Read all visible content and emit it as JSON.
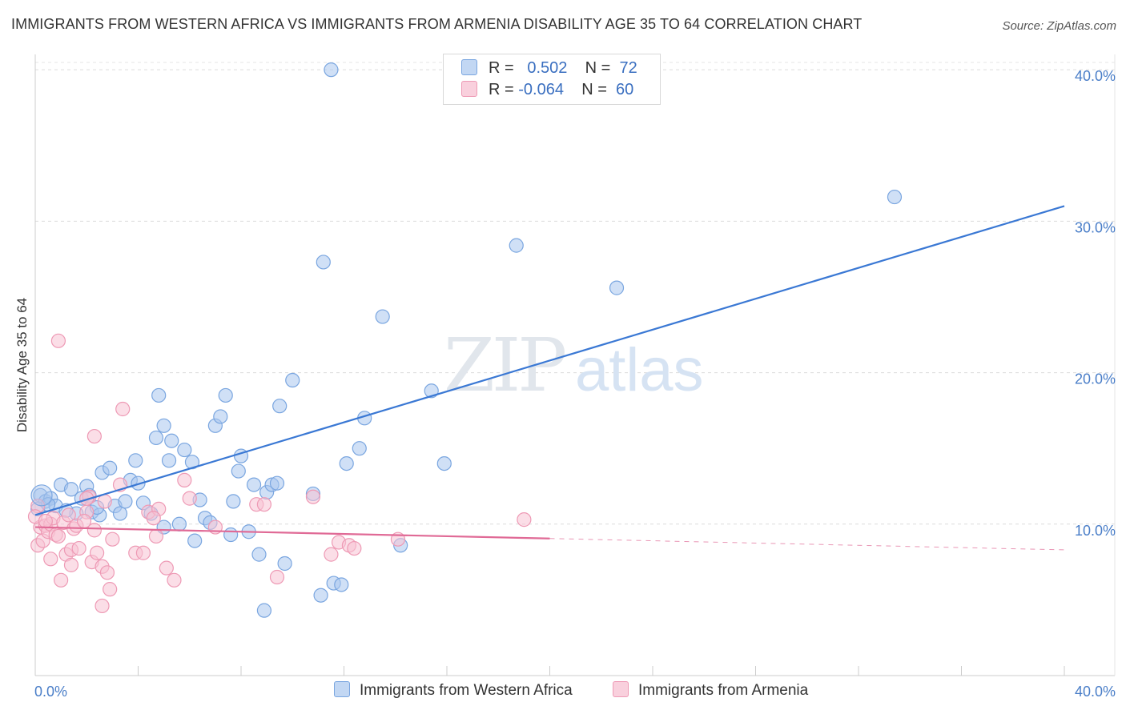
{
  "title": "IMMIGRANTS FROM WESTERN AFRICA VS IMMIGRANTS FROM ARMENIA DISABILITY AGE 35 TO 64 CORRELATION CHART",
  "source": "Source: ZipAtlas.com",
  "watermark": {
    "zip": "ZIP",
    "atlas": "atlas"
  },
  "legend_top": {
    "rows": [
      {
        "r_label": "R =",
        "r_value": "0.502",
        "n_label": "N =",
        "n_value": "72"
      },
      {
        "r_label": "R =",
        "r_value": "-0.064",
        "n_label": "N =",
        "n_value": "60"
      }
    ]
  },
  "chart_data": {
    "type": "scatter",
    "title": "IMMIGRANTS FROM WESTERN AFRICA VS IMMIGRANTS FROM ARMENIA DISABILITY AGE 35 TO 64 CORRELATION CHART",
    "xlabel": "",
    "ylabel": "Disability Age 35 to 64",
    "xlim": [
      0,
      40
    ],
    "ylim": [
      0,
      40.8
    ],
    "x_tick_labels": [
      "0.0%",
      "40.0%"
    ],
    "y_ticks": [
      10,
      20,
      30,
      40
    ],
    "y_tick_labels": [
      "10.0%",
      "20.0%",
      "30.0%",
      "40.0%"
    ],
    "grid": true,
    "legend_position": "bottom",
    "series": [
      {
        "name": "Immigrants from Western Africa",
        "color": "#7aa6e0",
        "fill": "#a9c6ee",
        "line_color": "#3a78d4",
        "r": 0.502,
        "n": 72,
        "trend": {
          "x0": 0,
          "y0": 10.6,
          "x1": 40,
          "y1": 31.0,
          "dashed_from": null
        },
        "points": [
          [
            0.2,
            11.9
          ],
          [
            0.4,
            11.5
          ],
          [
            0.6,
            11.7
          ],
          [
            0.8,
            11.2
          ],
          [
            1.0,
            12.6
          ],
          [
            1.4,
            12.3
          ],
          [
            1.6,
            10.7
          ],
          [
            1.8,
            11.7
          ],
          [
            2.0,
            12.5
          ],
          [
            2.1,
            11.9
          ],
          [
            2.2,
            10.8
          ],
          [
            2.5,
            10.6
          ],
          [
            2.6,
            13.4
          ],
          [
            2.9,
            13.7
          ],
          [
            3.1,
            11.2
          ],
          [
            3.3,
            10.7
          ],
          [
            3.5,
            11.5
          ],
          [
            3.7,
            12.9
          ],
          [
            3.9,
            14.2
          ],
          [
            4.0,
            12.7
          ],
          [
            4.2,
            11.4
          ],
          [
            4.5,
            10.7
          ],
          [
            4.7,
            15.7
          ],
          [
            4.8,
            18.5
          ],
          [
            5.0,
            16.5
          ],
          [
            5.2,
            14.2
          ],
          [
            5.3,
            15.5
          ],
          [
            5.6,
            10.0
          ],
          [
            5.8,
            14.9
          ],
          [
            6.1,
            14.1
          ],
          [
            6.2,
            8.9
          ],
          [
            6.4,
            11.6
          ],
          [
            6.6,
            10.4
          ],
          [
            6.8,
            10.1
          ],
          [
            7.0,
            16.5
          ],
          [
            7.2,
            17.1
          ],
          [
            7.4,
            18.5
          ],
          [
            7.6,
            9.3
          ],
          [
            7.7,
            11.5
          ],
          [
            7.9,
            13.5
          ],
          [
            8.0,
            14.5
          ],
          [
            8.3,
            9.5
          ],
          [
            8.5,
            12.6
          ],
          [
            8.7,
            8.0
          ],
          [
            9.0,
            12.1
          ],
          [
            9.2,
            12.6
          ],
          [
            9.4,
            12.7
          ],
          [
            9.5,
            17.8
          ],
          [
            9.7,
            7.4
          ],
          [
            10.0,
            19.5
          ],
          [
            10.8,
            12.0
          ],
          [
            11.1,
            5.3
          ],
          [
            11.2,
            27.3
          ],
          [
            11.5,
            40.0
          ],
          [
            11.6,
            6.1
          ],
          [
            11.9,
            6.0
          ],
          [
            12.1,
            14.0
          ],
          [
            12.6,
            15.0
          ],
          [
            12.8,
            17.0
          ],
          [
            13.5,
            23.7
          ],
          [
            14.2,
            8.6
          ],
          [
            15.4,
            18.8
          ],
          [
            15.9,
            14.0
          ],
          [
            18.7,
            28.4
          ],
          [
            22.6,
            25.6
          ],
          [
            33.4,
            31.6
          ],
          [
            0.1,
            11.0
          ],
          [
            0.5,
            11.3
          ],
          [
            1.2,
            10.9
          ],
          [
            2.4,
            11.1
          ],
          [
            5.0,
            9.8
          ],
          [
            8.9,
            4.3
          ]
        ]
      },
      {
        "name": "Immigrants from Armenia",
        "color": "#ee9ab5",
        "fill": "#f7c3d4",
        "line_color": "#e06a96",
        "r": -0.064,
        "n": 60,
        "trend": {
          "x0": 0,
          "y0": 9.8,
          "x1": 40,
          "y1": 8.3,
          "dashed_from": 20.0
        },
        "points": [
          [
            0.1,
            11.2
          ],
          [
            0.1,
            8.6
          ],
          [
            0.2,
            9.8
          ],
          [
            0.3,
            8.9
          ],
          [
            0.4,
            9.9
          ],
          [
            0.5,
            9.5
          ],
          [
            0.6,
            10.0
          ],
          [
            0.6,
            7.7
          ],
          [
            0.7,
            10.4
          ],
          [
            0.8,
            9.3
          ],
          [
            0.9,
            22.1
          ],
          [
            1.0,
            6.3
          ],
          [
            1.1,
            10.1
          ],
          [
            1.2,
            8.0
          ],
          [
            1.3,
            10.6
          ],
          [
            1.4,
            8.3
          ],
          [
            1.4,
            7.3
          ],
          [
            1.5,
            9.7
          ],
          [
            1.6,
            9.9
          ],
          [
            1.7,
            8.4
          ],
          [
            2.0,
            10.8
          ],
          [
            2.1,
            11.8
          ],
          [
            2.2,
            7.5
          ],
          [
            2.3,
            9.6
          ],
          [
            2.3,
            15.8
          ],
          [
            2.4,
            8.1
          ],
          [
            2.6,
            7.2
          ],
          [
            2.6,
            4.6
          ],
          [
            2.7,
            11.5
          ],
          [
            2.8,
            6.8
          ],
          [
            2.9,
            5.7
          ],
          [
            3.3,
            12.6
          ],
          [
            3.4,
            17.6
          ],
          [
            3.9,
            8.1
          ],
          [
            4.2,
            8.1
          ],
          [
            4.4,
            10.8
          ],
          [
            4.7,
            9.2
          ],
          [
            4.8,
            11.0
          ],
          [
            5.1,
            7.1
          ],
          [
            5.4,
            6.3
          ],
          [
            5.8,
            12.9
          ],
          [
            6.0,
            11.7
          ],
          [
            7.0,
            9.8
          ],
          [
            8.6,
            11.3
          ],
          [
            8.9,
            11.3
          ],
          [
            9.4,
            6.5
          ],
          [
            11.5,
            8.0
          ],
          [
            11.8,
            8.8
          ],
          [
            12.2,
            8.6
          ],
          [
            12.4,
            8.4
          ],
          [
            14.1,
            9.0
          ],
          [
            19.0,
            10.3
          ],
          [
            0.0,
            10.5
          ],
          [
            0.4,
            10.2
          ],
          [
            1.9,
            10.2
          ],
          [
            3.0,
            9.0
          ],
          [
            4.6,
            10.4
          ],
          [
            10.8,
            11.8
          ],
          [
            2.0,
            11.7
          ],
          [
            0.9,
            9.2
          ]
        ]
      }
    ]
  }
}
